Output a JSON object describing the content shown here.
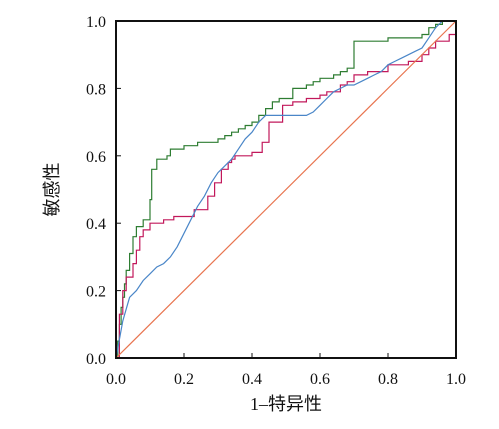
{
  "chart_data": {
    "type": "line",
    "xlabel": "1–特异性",
    "ylabel": "敏感性",
    "xlim": [
      0,
      1
    ],
    "ylim": [
      0,
      1
    ],
    "x_ticks": [
      "0.0",
      "0.2",
      "0.4",
      "0.6",
      "0.8",
      "1.0"
    ],
    "y_ticks": [
      "0.0",
      "0.2",
      "0.4",
      "0.6",
      "0.8",
      "1.0"
    ],
    "grid": false,
    "legend": "none",
    "series": [
      {
        "color": "#2e7d32",
        "step": true,
        "x": [
          0,
          0.005,
          0.01,
          0.015,
          0.02,
          0.025,
          0.03,
          0.04,
          0.05,
          0.06,
          0.08,
          0.1,
          0.105,
          0.12,
          0.15,
          0.16,
          0.2,
          0.24,
          0.3,
          0.32,
          0.34,
          0.36,
          0.38,
          0.4,
          0.42,
          0.44,
          0.46,
          0.48,
          0.52,
          0.56,
          0.58,
          0.6,
          0.64,
          0.66,
          0.68,
          0.7,
          0.8,
          0.9,
          0.92,
          0.94,
          0.96,
          1.0
        ],
        "y": [
          0,
          0.05,
          0.1,
          0.15,
          0.18,
          0.22,
          0.26,
          0.31,
          0.36,
          0.39,
          0.41,
          0.47,
          0.56,
          0.59,
          0.6,
          0.62,
          0.63,
          0.64,
          0.65,
          0.66,
          0.67,
          0.68,
          0.69,
          0.7,
          0.72,
          0.74,
          0.76,
          0.77,
          0.8,
          0.81,
          0.82,
          0.83,
          0.84,
          0.85,
          0.86,
          0.94,
          0.95,
          0.96,
          0.98,
          0.99,
          1.0,
          1.0
        ]
      },
      {
        "color": "#c2185b",
        "step": true,
        "x": [
          0,
          0.01,
          0.02,
          0.03,
          0.05,
          0.06,
          0.07,
          0.08,
          0.1,
          0.14,
          0.17,
          0.23,
          0.27,
          0.29,
          0.31,
          0.33,
          0.34,
          0.35,
          0.4,
          0.43,
          0.45,
          0.49,
          0.52,
          0.56,
          0.6,
          0.62,
          0.66,
          0.68,
          0.7,
          0.74,
          0.8,
          0.86,
          0.9,
          0.92,
          0.94,
          0.98,
          1.0
        ],
        "y": [
          0,
          0.13,
          0.2,
          0.24,
          0.28,
          0.32,
          0.36,
          0.38,
          0.4,
          0.41,
          0.42,
          0.44,
          0.48,
          0.52,
          0.56,
          0.58,
          0.59,
          0.6,
          0.61,
          0.64,
          0.7,
          0.75,
          0.76,
          0.77,
          0.78,
          0.79,
          0.81,
          0.82,
          0.84,
          0.85,
          0.87,
          0.88,
          0.9,
          0.92,
          0.94,
          0.96,
          1.0
        ]
      },
      {
        "color": "#4a86c8",
        "step": false,
        "x": [
          0,
          0.02,
          0.04,
          0.06,
          0.08,
          0.1,
          0.12,
          0.14,
          0.16,
          0.18,
          0.2,
          0.22,
          0.24,
          0.26,
          0.28,
          0.3,
          0.32,
          0.34,
          0.36,
          0.38,
          0.4,
          0.42,
          0.44,
          0.46,
          0.48,
          0.5,
          0.52,
          0.54,
          0.56,
          0.58,
          0.6,
          0.62,
          0.64,
          0.66,
          0.68,
          0.7,
          0.72,
          0.74,
          0.76,
          0.78,
          0.8,
          0.82,
          0.84,
          0.86,
          0.88,
          0.9,
          0.92,
          0.94,
          0.96,
          0.98,
          1.0
        ],
        "y": [
          0,
          0.11,
          0.18,
          0.2,
          0.23,
          0.25,
          0.27,
          0.28,
          0.3,
          0.33,
          0.37,
          0.41,
          0.45,
          0.48,
          0.52,
          0.55,
          0.57,
          0.59,
          0.62,
          0.65,
          0.67,
          0.7,
          0.72,
          0.72,
          0.72,
          0.72,
          0.72,
          0.72,
          0.72,
          0.73,
          0.75,
          0.77,
          0.79,
          0.8,
          0.81,
          0.81,
          0.82,
          0.83,
          0.84,
          0.85,
          0.87,
          0.88,
          0.89,
          0.9,
          0.91,
          0.92,
          0.95,
          0.98,
          1.0,
          1.0,
          1.0
        ]
      },
      {
        "color": "#e8744f",
        "step": false,
        "x": [
          0,
          1
        ],
        "y": [
          0,
          1
        ]
      }
    ]
  }
}
